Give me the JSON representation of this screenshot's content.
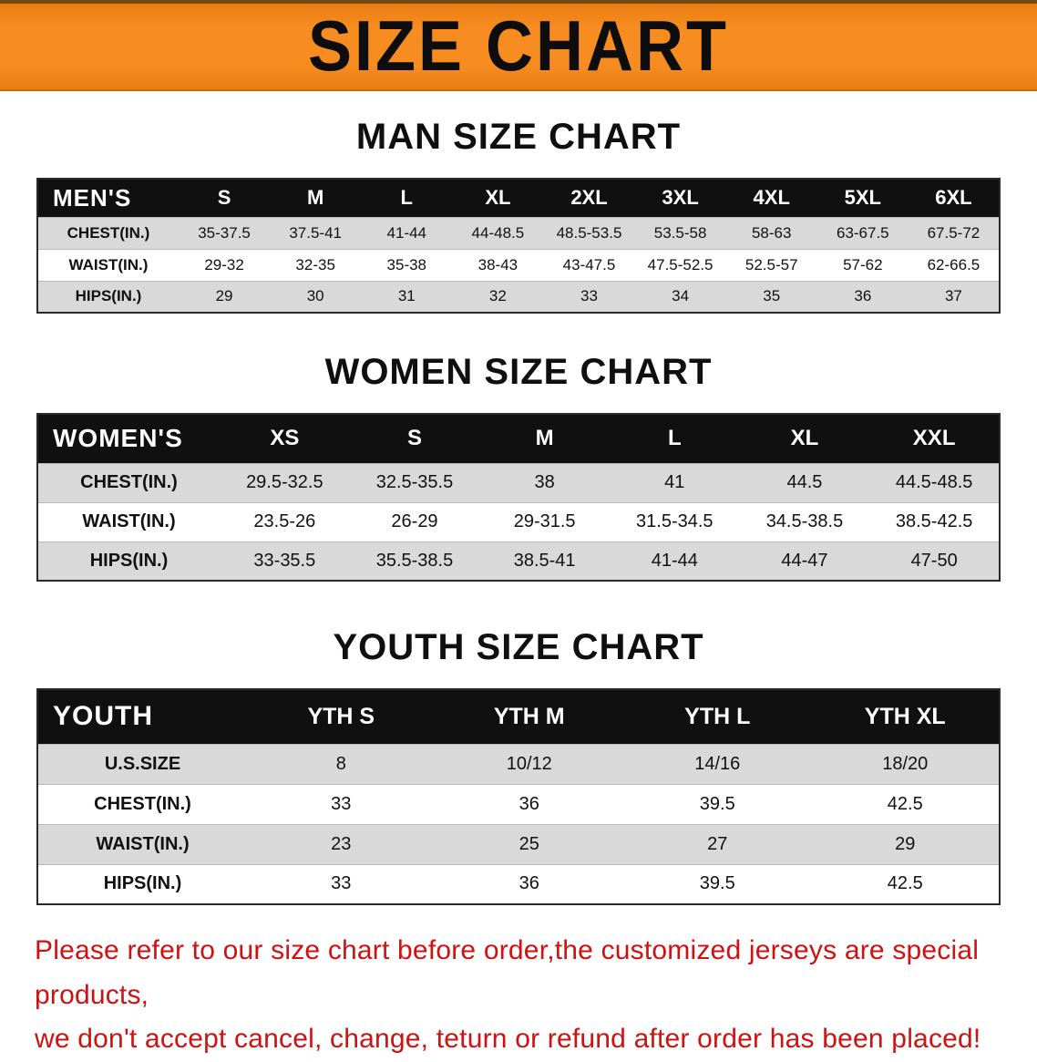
{
  "banner": {
    "title": "SIZE CHART"
  },
  "colors": {
    "banner_orange": "#F78C20",
    "table_header_black": "#101010",
    "row_gray": "#D9D9D9",
    "disclaimer_red": "#D01111"
  },
  "men": {
    "heading": "MAN SIZE CHART",
    "table": {
      "header": [
        "MEN'S",
        "S",
        "M",
        "L",
        "XL",
        "2XL",
        "3XL",
        "4XL",
        "5XL",
        "6XL"
      ],
      "rows": [
        [
          "CHEST(IN.)",
          "35-37.5",
          "37.5-41",
          "41-44",
          "44-48.5",
          "48.5-53.5",
          "53.5-58",
          "58-63",
          "63-67.5",
          "67.5-72"
        ],
        [
          "WAIST(IN.)",
          "29-32",
          "32-35",
          "35-38",
          "38-43",
          "43-47.5",
          "47.5-52.5",
          "52.5-57",
          "57-62",
          "62-66.5"
        ],
        [
          "HIPS(IN.)",
          "29",
          "30",
          "31",
          "32",
          "33",
          "34",
          "35",
          "36",
          "37"
        ]
      ]
    }
  },
  "women": {
    "heading": "WOMEN SIZE CHART",
    "table": {
      "header": [
        "WOMEN'S",
        "XS",
        "S",
        "M",
        "L",
        "XL",
        "XXL"
      ],
      "rows": [
        [
          "CHEST(IN.)",
          "29.5-32.5",
          "32.5-35.5",
          "38",
          "41",
          "44.5",
          "44.5-48.5"
        ],
        [
          "WAIST(IN.)",
          "23.5-26",
          "26-29",
          "29-31.5",
          "31.5-34.5",
          "34.5-38.5",
          "38.5-42.5"
        ],
        [
          "HIPS(IN.)",
          "33-35.5",
          "35.5-38.5",
          "38.5-41",
          "41-44",
          "44-47",
          "47-50"
        ]
      ]
    }
  },
  "youth": {
    "heading": "YOUTH SIZE CHART",
    "table": {
      "header": [
        "YOUTH",
        "YTH S",
        "YTH M",
        "YTH L",
        "YTH XL"
      ],
      "rows": [
        [
          "U.S.SIZE",
          "8",
          "10/12",
          "14/16",
          "18/20"
        ],
        [
          "CHEST(IN.)",
          "33",
          "36",
          "39.5",
          "42.5"
        ],
        [
          "WAIST(IN.)",
          "23",
          "25",
          "27",
          "29"
        ],
        [
          "HIPS(IN.)",
          "33",
          "36",
          "39.5",
          "42.5"
        ]
      ]
    }
  },
  "disclaimer": {
    "lines": [
      "Please refer to our size chart before order,the customized jerseys are special products,",
      "we don't accept cancel, change, teturn or refund after order has been placed!"
    ]
  }
}
